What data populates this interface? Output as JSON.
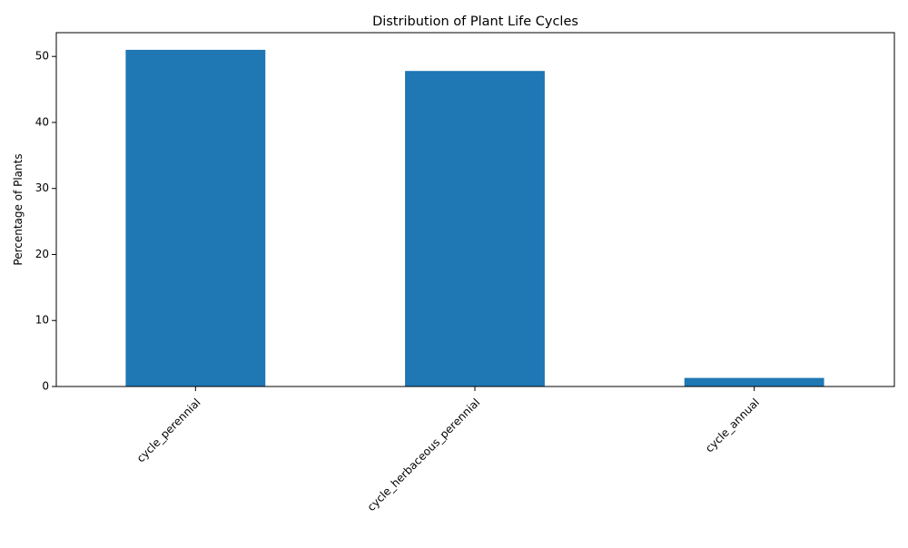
{
  "chart_data": {
    "type": "bar",
    "title": "Distribution of Plant Life Cycles",
    "xlabel": "",
    "ylabel": "Percentage of Plants",
    "categories": [
      "cycle_perennial",
      "cycle_herbaceous_perennial",
      "cycle_annual"
    ],
    "values": [
      51.0,
      47.8,
      1.3
    ],
    "ylim": [
      0,
      53.6
    ],
    "yticks": [
      0,
      10,
      20,
      30,
      40,
      50
    ],
    "bar_color": "#1f77b4",
    "grid": false,
    "legend": "none",
    "xtick_rotation_deg": 45
  }
}
